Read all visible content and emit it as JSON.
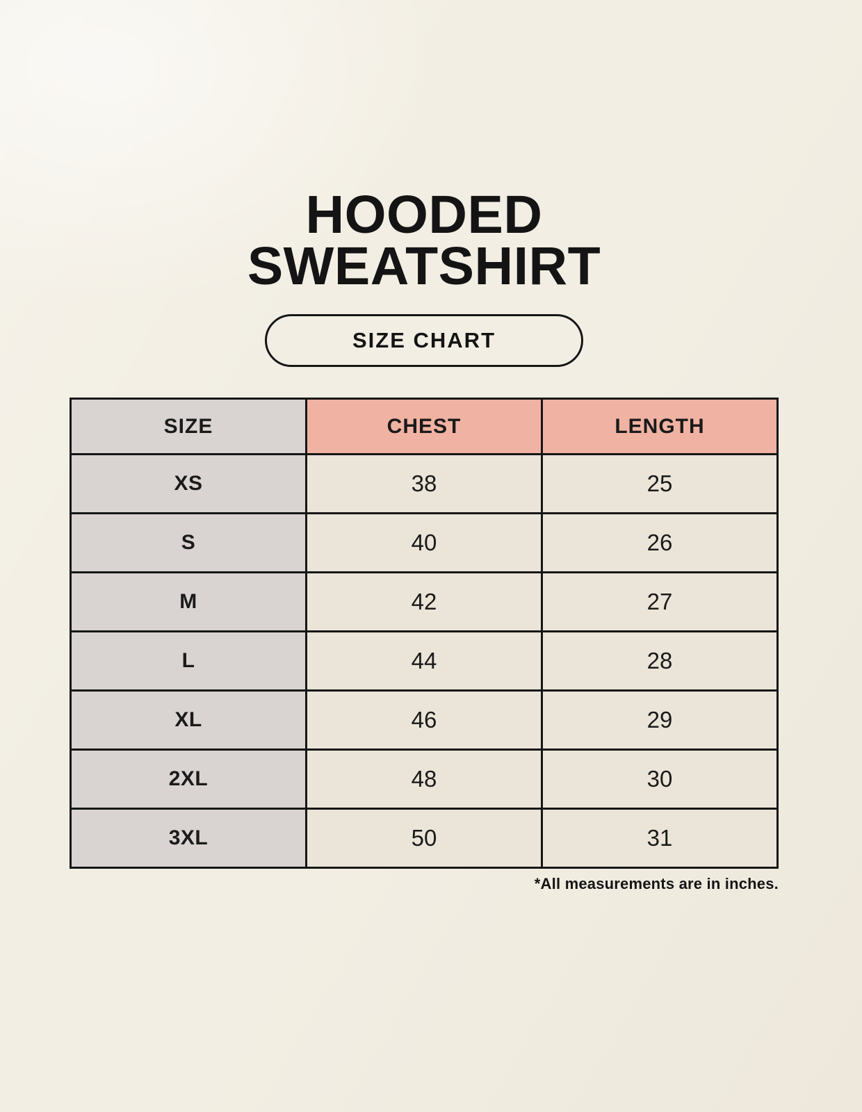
{
  "title": {
    "line1": "HOODED",
    "line2": "SWEATSHIRT"
  },
  "badge": {
    "label": "SIZE CHART"
  },
  "table": {
    "headers": [
      "SIZE",
      "CHEST",
      "LENGTH"
    ],
    "rows": [
      [
        "XS",
        "38",
        "25"
      ],
      [
        "S",
        "40",
        "26"
      ],
      [
        "M",
        "42",
        "27"
      ],
      [
        "L",
        "44",
        "28"
      ],
      [
        "XL",
        "46",
        "29"
      ],
      [
        "2XL",
        "48",
        "30"
      ],
      [
        "3XL",
        "50",
        "31"
      ]
    ]
  },
  "footnote": "*All measurements are in inches.",
  "colors": {
    "background": "#f2eee3",
    "size_column_bg": "#d9d3d2",
    "measure_header_bg": "#f0b2a2",
    "data_cell_bg": "#eae5d8",
    "border": "#161616",
    "text": "#1a1a1a"
  }
}
